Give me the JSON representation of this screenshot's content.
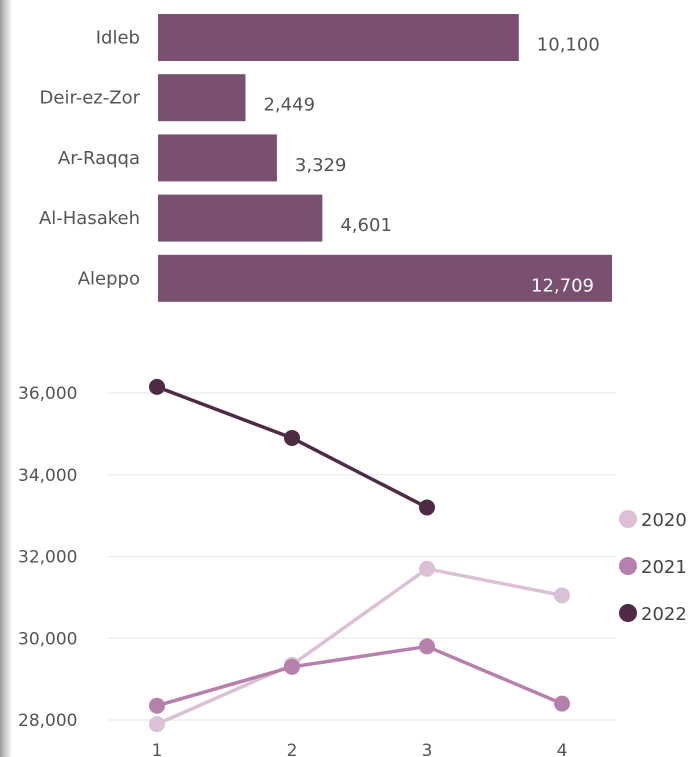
{
  "chart_data": [
    {
      "type": "bar",
      "orientation": "horizontal",
      "categories": [
        "Idleb",
        "Deir-ez-Zor",
        "Ar-Raqqa",
        "Al-Hasakeh",
        "Aleppo"
      ],
      "values": [
        10100,
        2449,
        3329,
        4601,
        12709
      ],
      "value_labels": [
        "10,100",
        "2,449",
        "3,329",
        "4,601",
        "12,709"
      ],
      "bar_color": "#7b4f6f",
      "xlim": [
        0,
        12709
      ]
    },
    {
      "type": "line",
      "x": [
        1,
        2,
        3,
        4
      ],
      "x_tick_labels": [
        "1",
        "2",
        "3",
        "4"
      ],
      "y_ticks": [
        28000,
        30000,
        32000,
        34000,
        36000
      ],
      "y_tick_labels": [
        "28,000",
        "30,000",
        "32,000",
        "34,000",
        "36,000"
      ],
      "ylim": [
        28000,
        36500
      ],
      "grid": true,
      "legend_position": "right",
      "series": [
        {
          "name": "2020",
          "color": "#dcc0d6",
          "values": [
            27900,
            29350,
            31700,
            31050
          ]
        },
        {
          "name": "2021",
          "color": "#b77fab",
          "values": [
            28350,
            29300,
            29800,
            28400
          ]
        },
        {
          "name": "2022",
          "color": "#4e2a44",
          "values": [
            36150,
            34900,
            33200,
            null
          ]
        }
      ]
    }
  ]
}
